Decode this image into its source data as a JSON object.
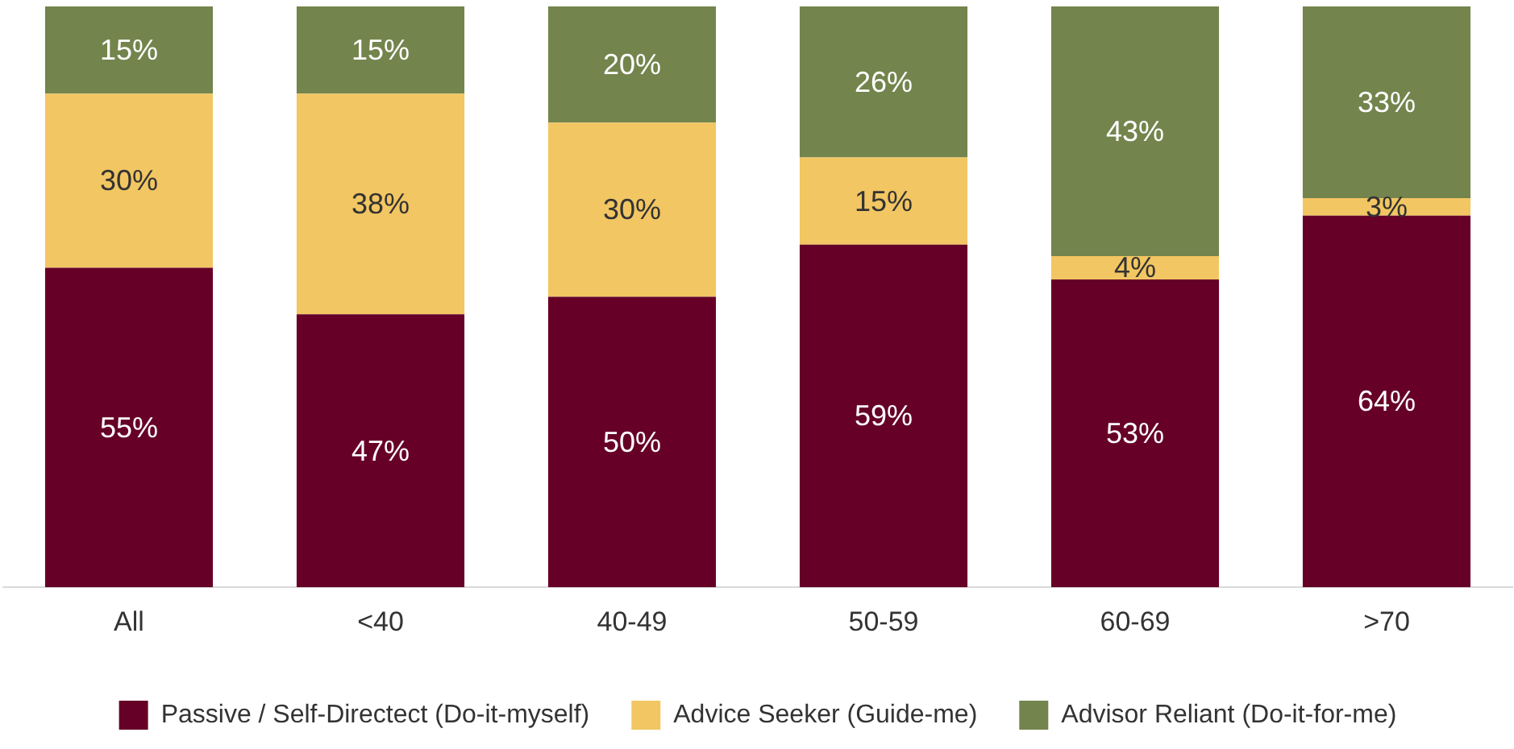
{
  "chart_data": {
    "type": "bar",
    "stacked": true,
    "legend": "bottom",
    "categories": [
      "All",
      "<40",
      "40-49",
      "50-59",
      "60-69",
      ">70"
    ],
    "series": [
      {
        "name": "Passive / Self-Directect (Do-it-myself)",
        "color": "#660027",
        "values": [
          55,
          47,
          50,
          59,
          53,
          64
        ],
        "value_labels": [
          "55%",
          "47%",
          "50%",
          "59%",
          "53%",
          "64%"
        ]
      },
      {
        "name": "Advice Seeker (Guide-me)",
        "color": "#f2c662",
        "values": [
          30,
          38,
          30,
          15,
          4,
          3
        ],
        "value_labels": [
          "30%",
          "38%",
          "30%",
          "15%",
          "4%",
          "3%"
        ]
      },
      {
        "name": "Advisor Reliant (Do-it-for-me)",
        "color": "#73844d",
        "values": [
          15,
          15,
          20,
          26,
          43,
          33
        ],
        "value_labels": [
          "15%",
          "15%",
          "20%",
          "26%",
          "43%",
          "33%"
        ]
      }
    ]
  }
}
